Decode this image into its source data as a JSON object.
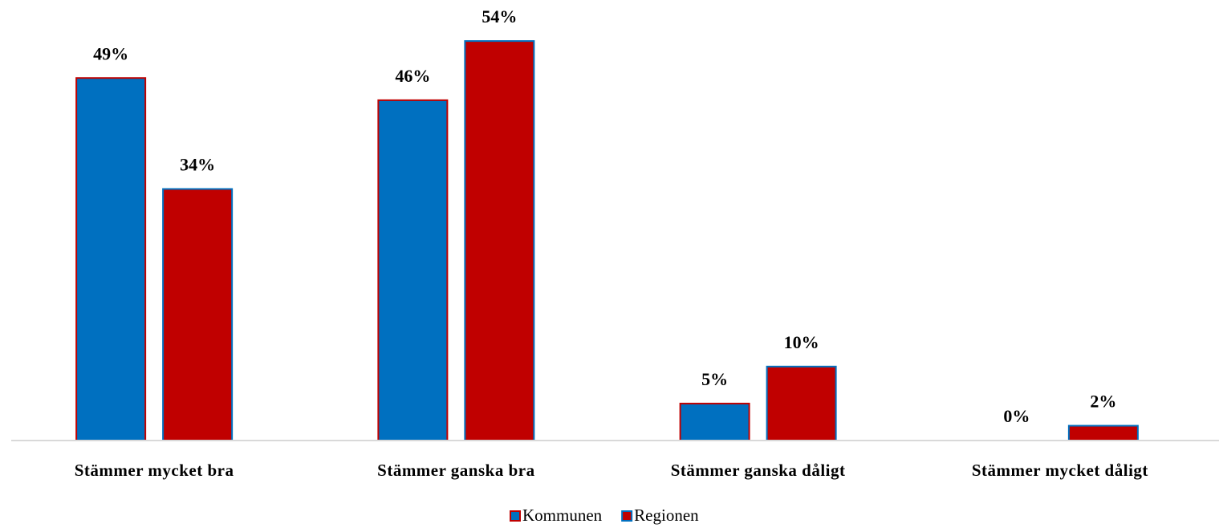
{
  "chart_data": {
    "type": "bar",
    "categories": [
      "Stämmer mycket bra",
      "Stämmer ganska bra",
      "Stämmer ganska dåligt",
      "Stämmer mycket dåligt"
    ],
    "series": [
      {
        "name": "Kommunen",
        "color": "#0070c0",
        "border": "#c00000",
        "values": [
          49,
          46,
          5,
          0
        ],
        "value_labels": [
          "49%",
          "46%",
          "5%",
          "0%"
        ]
      },
      {
        "name": "Regionen",
        "color": "#c00000",
        "border": "#0070c0",
        "values": [
          34,
          54,
          10,
          2
        ],
        "value_labels": [
          "34%",
          "54%",
          "10%",
          "2%"
        ]
      }
    ],
    "legend": "bottom"
  }
}
